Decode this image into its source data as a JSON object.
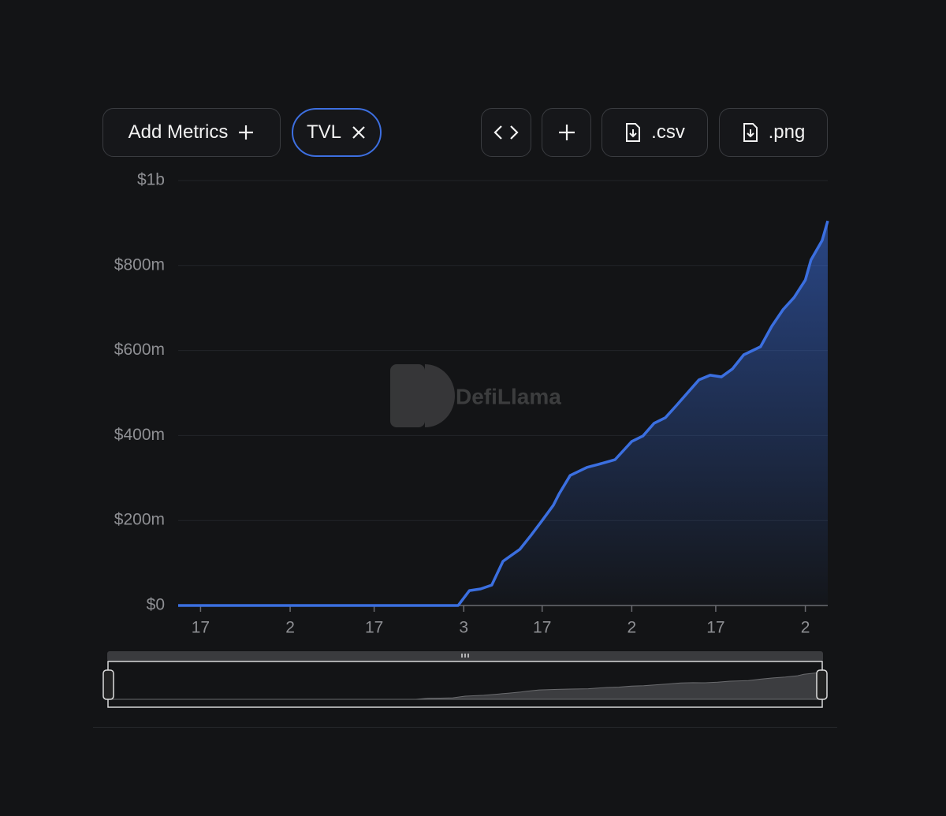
{
  "toolbar": {
    "add_metrics": "Add Metrics",
    "csv": ".csv",
    "png": ".png"
  },
  "chart_data": {
    "type": "area",
    "watermark": "DefiLlama",
    "x": [
      -4,
      46,
      48,
      50,
      52,
      54,
      57,
      59,
      61,
      63,
      64,
      66,
      69,
      71,
      74,
      77,
      79,
      81,
      83,
      85,
      87,
      89,
      91,
      93,
      95,
      97,
      100,
      102,
      104,
      106,
      108,
      109,
      111,
      112
    ],
    "series": [
      {
        "name": "TVL",
        "color": "#3b6fe0",
        "values": [
          0,
          0,
          35000000,
          39000000,
          48000000,
          104000000,
          132000000,
          165000000,
          200000000,
          236000000,
          262000000,
          306000000,
          325000000,
          332000000,
          343000000,
          386000000,
          399000000,
          429000000,
          442000000,
          471000000,
          501000000,
          531000000,
          542000000,
          538000000,
          557000000,
          590000000,
          609000000,
          657000000,
          696000000,
          725000000,
          766000000,
          813000000,
          859000000,
          905000000
        ]
      }
    ],
    "xlim": [
      -4,
      112
    ],
    "xticks": [
      {
        "value": 0,
        "label": "17"
      },
      {
        "value": 16,
        "label": "2"
      },
      {
        "value": 31,
        "label": "17"
      },
      {
        "value": 47,
        "label": "3"
      },
      {
        "value": 61,
        "label": "17"
      },
      {
        "value": 77,
        "label": "2"
      },
      {
        "value": 92,
        "label": "17"
      },
      {
        "value": 108,
        "label": "2"
      }
    ],
    "ylim": [
      0,
      1000000000
    ],
    "yticks": [
      {
        "value": 0,
        "label": "$0"
      },
      {
        "value": 200000000,
        "label": "$200m"
      },
      {
        "value": 400000000,
        "label": "$400m"
      },
      {
        "value": 600000000,
        "label": "$600m"
      },
      {
        "value": 800000000,
        "label": "$800m"
      },
      {
        "value": 1000000000,
        "label": "$1b"
      }
    ],
    "grid": true
  }
}
